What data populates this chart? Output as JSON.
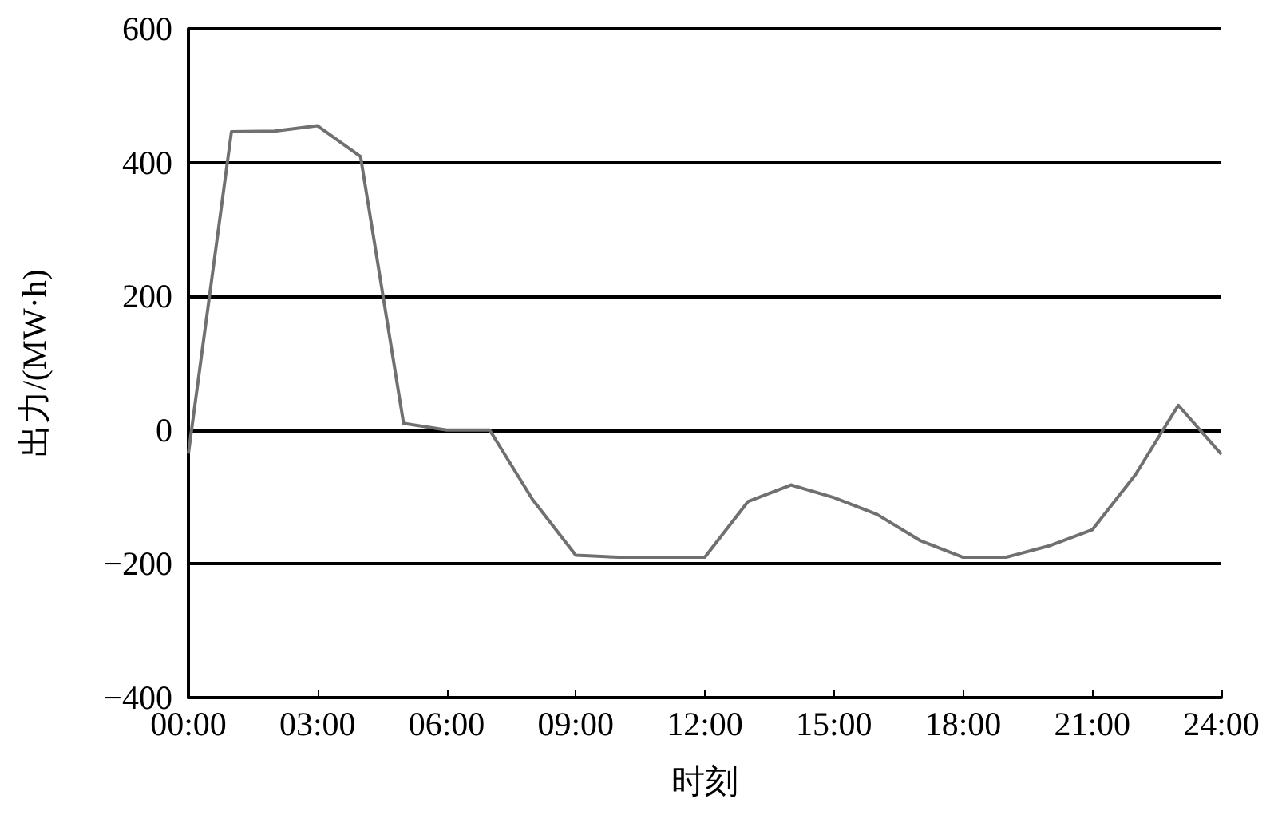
{
  "chart_data": {
    "type": "line",
    "xlabel": "时刻",
    "ylabel": "出力/(MW·h)",
    "x": [
      0,
      1,
      2,
      3,
      4,
      5,
      6,
      7,
      8,
      9,
      10,
      11,
      12,
      13,
      14,
      15,
      16,
      17,
      18,
      19,
      20,
      21,
      22,
      23,
      24
    ],
    "series": [
      {
        "color": "#707070",
        "values": [
          -35,
          446,
          447,
          455,
          409,
          10,
          0,
          0,
          -104,
          -187,
          -190,
          -190,
          -190,
          -107,
          -82,
          -101,
          -126,
          -165,
          -190,
          -190,
          -173,
          -149,
          -67,
          37,
          -36
        ]
      }
    ],
    "xlim": [
      0,
      24
    ],
    "xticks": [
      {
        "value": 0,
        "label": "00:00"
      },
      {
        "value": 3,
        "label": "03:00"
      },
      {
        "value": 6,
        "label": "06:00"
      },
      {
        "value": 9,
        "label": "09:00"
      },
      {
        "value": 12,
        "label": "12:00"
      },
      {
        "value": 15,
        "label": "15:00"
      },
      {
        "value": 18,
        "label": "18:00"
      },
      {
        "value": 21,
        "label": "21:00"
      },
      {
        "value": 24,
        "label": "24:00"
      }
    ],
    "ylim": [
      -400,
      600
    ],
    "yticks": [
      {
        "value": -400,
        "label": "−400"
      },
      {
        "value": -200,
        "label": "−200"
      },
      0,
      200,
      400,
      600
    ],
    "grid": "y",
    "marker": "none",
    "line_style": "solid"
  }
}
